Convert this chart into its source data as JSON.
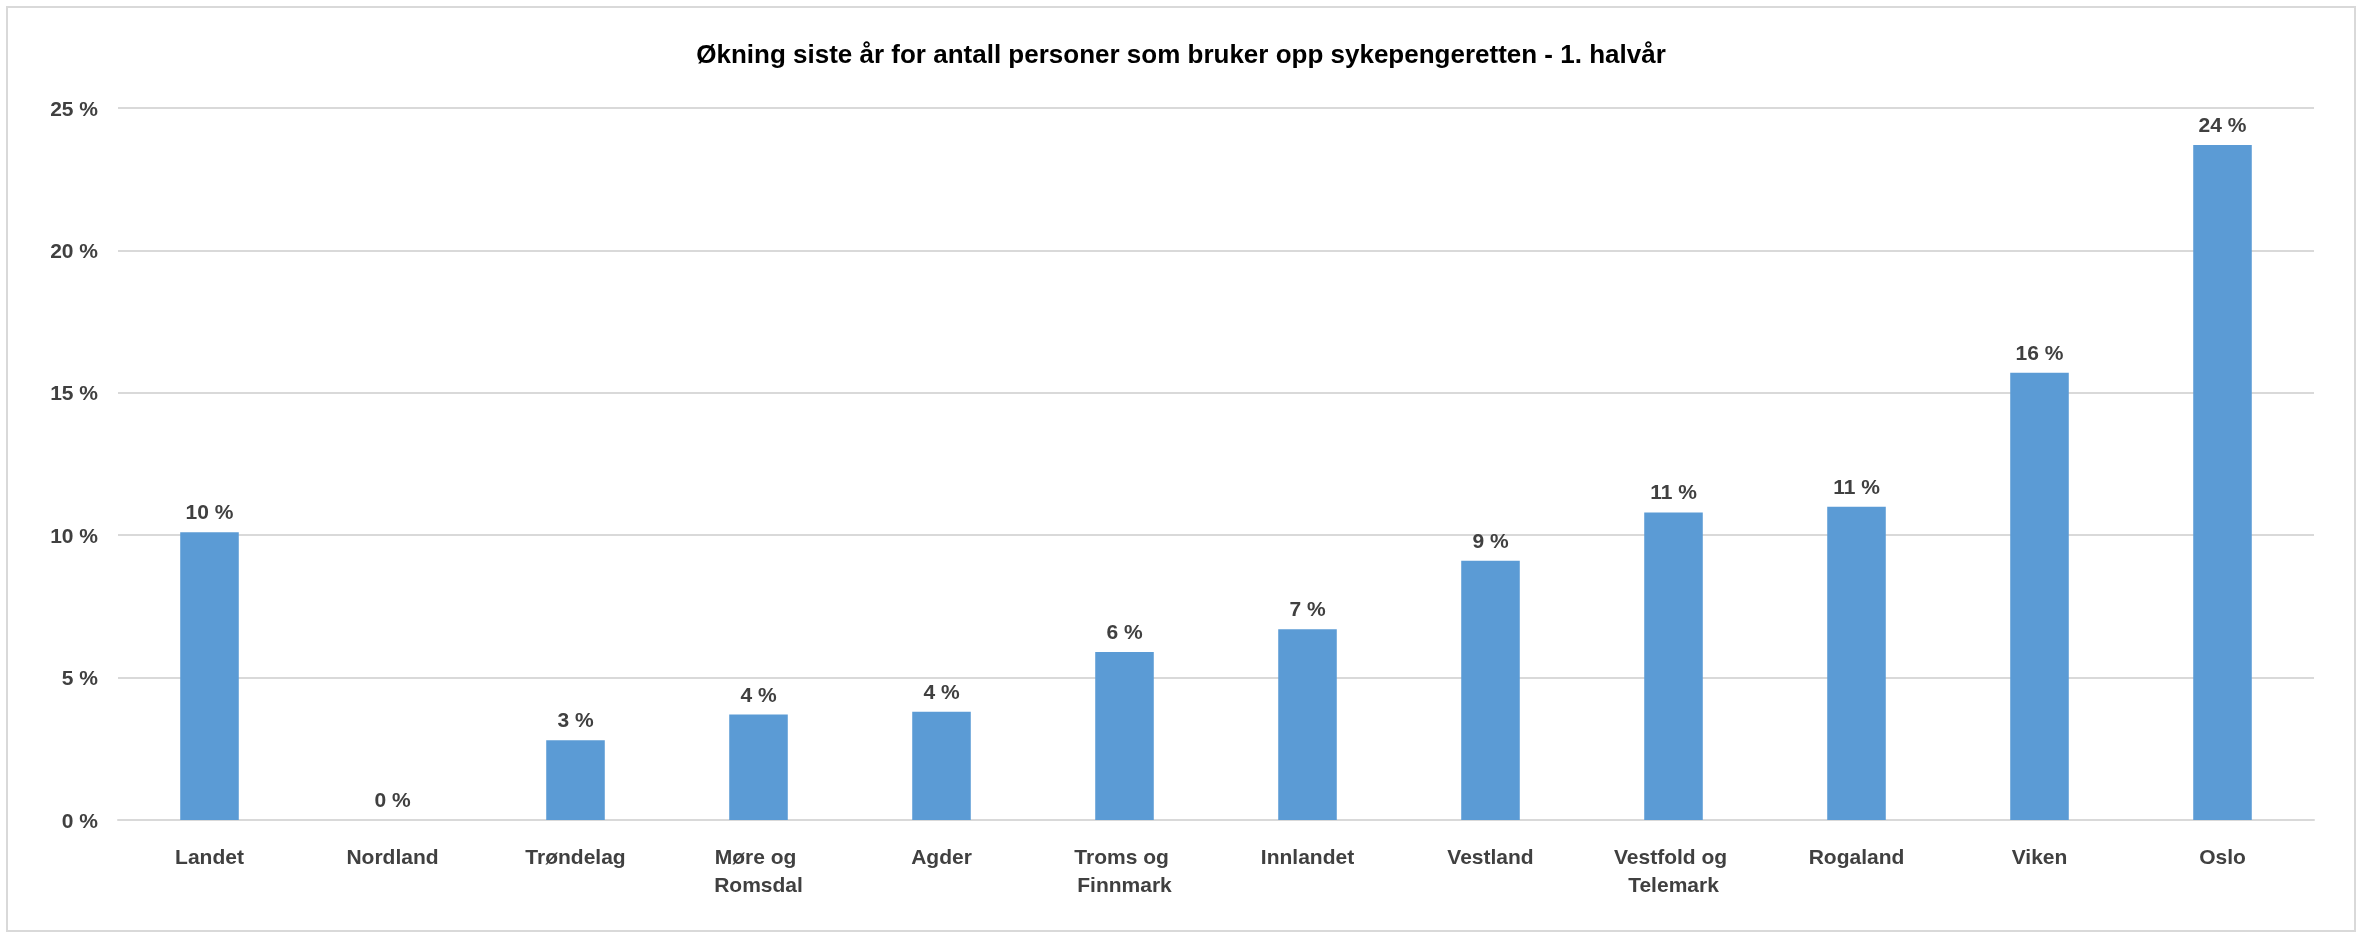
{
  "chart_data": {
    "type": "bar",
    "title": "Økning siste år for antall personer som bruker opp sykepengeretten - 1. halvår",
    "categories": [
      "Landet",
      "Nordland",
      "Trøndelag",
      "Møre og Romsdal",
      "Agder",
      "Troms og Finnmark",
      "Innlandet",
      "Vestland",
      "Vestfold og Telemark",
      "Rogaland",
      "Viken",
      "Oslo"
    ],
    "values": [
      10.1,
      0,
      2.8,
      3.7,
      3.8,
      5.9,
      6.7,
      9.1,
      10.8,
      11.0,
      15.7,
      23.7
    ],
    "value_labels": [
      "10 %",
      "0 %",
      "3 %",
      "4 %",
      "4 %",
      "6 %",
      "7 %",
      "9 %",
      "11 %",
      "11 %",
      "16 %",
      "24 %"
    ],
    "color": "#5b9bd5",
    "ylim": [
      0,
      25
    ],
    "yticks": [
      {
        "value": 0,
        "label": "0 %"
      },
      {
        "value": 5,
        "label": "5 %"
      },
      {
        "value": 10,
        "label": "10 %"
      },
      {
        "value": 15,
        "label": "15 %"
      },
      {
        "value": 20,
        "label": "20 %"
      },
      {
        "value": 25,
        "label": "25 %"
      }
    ],
    "grid": "y"
  }
}
